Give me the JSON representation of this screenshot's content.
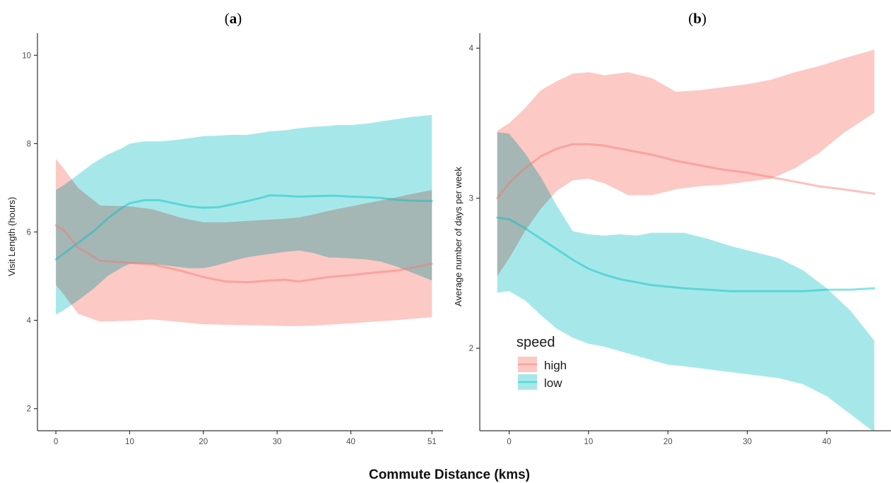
{
  "figure": {
    "xlabel": "Commute Distance (kms)"
  },
  "colors": {
    "high": "#F8766D",
    "low": "#00BFC4",
    "band_high": "#FCC9C5",
    "band_low": "#A6E8EA",
    "band_overlap": "#C4C4C4"
  },
  "chart_data": [
    {
      "type": "line",
      "panel_label": {
        "open": "(",
        "letter": "a",
        "close": ")"
      },
      "title": "",
      "xlabel": "",
      "ylabel": "Visit Length (hours)",
      "xlim": [
        -2.5,
        52.5
      ],
      "ylim": [
        1.5,
        10.5
      ],
      "xticks": [
        0,
        10,
        20,
        30,
        40,
        51
      ],
      "yticks": [
        2,
        4,
        6,
        8,
        10
      ],
      "grid": false,
      "series": [
        {
          "name": "high",
          "x": [
            0,
            1,
            3,
            6,
            10,
            13,
            17,
            20,
            23,
            26,
            29,
            31,
            33,
            35,
            37,
            40,
            43,
            46,
            48,
            51
          ],
          "y": [
            6.15,
            6.05,
            5.65,
            5.35,
            5.3,
            5.27,
            5.12,
            4.98,
            4.88,
            4.86,
            4.9,
            4.92,
            4.88,
            4.93,
            4.98,
            5.02,
            5.08,
            5.12,
            5.18,
            5.28
          ],
          "lower": [
            4.8,
            4.6,
            4.15,
            3.97,
            3.99,
            4.02,
            3.96,
            3.91,
            3.9,
            3.89,
            3.88,
            3.87,
            3.87,
            3.88,
            3.9,
            3.93,
            3.97,
            4.0,
            4.03,
            4.07
          ],
          "upper": [
            7.65,
            7.45,
            7.0,
            6.6,
            6.58,
            6.52,
            6.32,
            6.22,
            6.22,
            6.25,
            6.28,
            6.3,
            6.33,
            6.4,
            6.48,
            6.58,
            6.68,
            6.78,
            6.85,
            6.95
          ]
        },
        {
          "name": "low",
          "x": [
            0,
            1,
            3,
            5,
            7,
            9,
            10,
            12,
            14,
            16,
            18,
            20,
            22,
            24,
            26,
            28,
            29,
            31,
            33,
            35,
            37,
            38,
            40,
            42,
            44,
            46,
            48,
            51
          ],
          "y": [
            5.38,
            5.5,
            5.75,
            6.0,
            6.3,
            6.55,
            6.65,
            6.72,
            6.72,
            6.65,
            6.58,
            6.55,
            6.56,
            6.63,
            6.7,
            6.78,
            6.83,
            6.82,
            6.8,
            6.81,
            6.82,
            6.82,
            6.8,
            6.79,
            6.77,
            6.73,
            6.71,
            6.7
          ],
          "lower": [
            4.13,
            4.22,
            4.45,
            4.7,
            5.0,
            5.2,
            5.28,
            5.28,
            5.26,
            5.22,
            5.18,
            5.18,
            5.25,
            5.35,
            5.43,
            5.48,
            5.5,
            5.55,
            5.58,
            5.52,
            5.42,
            5.42,
            5.4,
            5.38,
            5.33,
            5.23,
            5.1,
            4.9
          ],
          "upper": [
            6.95,
            7.05,
            7.3,
            7.55,
            7.75,
            7.9,
            8.0,
            8.05,
            8.05,
            8.08,
            8.12,
            8.17,
            8.18,
            8.2,
            8.2,
            8.25,
            8.28,
            8.3,
            8.35,
            8.38,
            8.4,
            8.42,
            8.42,
            8.45,
            8.5,
            8.55,
            8.6,
            8.65
          ]
        }
      ]
    },
    {
      "type": "line",
      "panel_label": {
        "open": "(",
        "letter": "b",
        "close": ")"
      },
      "title": "",
      "xlabel": "",
      "ylabel": "Average number of days per week",
      "xlim": [
        -3.7,
        48.1
      ],
      "ylim": [
        1.45,
        4.1
      ],
      "xticks": [
        0,
        10,
        20,
        30,
        40
      ],
      "yticks": [
        2,
        3,
        4
      ],
      "grid": false,
      "legend": {
        "title": "speed",
        "placement": "bottom-left"
      },
      "series": [
        {
          "name": "high",
          "x": [
            -1.5,
            0,
            2,
            4,
            6,
            8,
            10,
            12,
            15,
            18,
            21,
            24,
            27,
            30,
            33,
            36,
            39,
            42,
            46
          ],
          "y": [
            3.0,
            3.1,
            3.2,
            3.28,
            3.33,
            3.36,
            3.36,
            3.35,
            3.32,
            3.29,
            3.25,
            3.22,
            3.19,
            3.17,
            3.14,
            3.11,
            3.08,
            3.06,
            3.03
          ],
          "lower": [
            2.48,
            2.6,
            2.78,
            2.93,
            3.05,
            3.12,
            3.13,
            3.1,
            3.02,
            3.02,
            3.06,
            3.08,
            3.09,
            3.11,
            3.13,
            3.2,
            3.3,
            3.43,
            3.57
          ],
          "upper": [
            3.45,
            3.5,
            3.6,
            3.72,
            3.78,
            3.83,
            3.84,
            3.82,
            3.84,
            3.8,
            3.71,
            3.72,
            3.74,
            3.76,
            3.79,
            3.84,
            3.88,
            3.93,
            3.99
          ]
        },
        {
          "name": "low",
          "x": [
            -1.5,
            0,
            2,
            4,
            6,
            8,
            10,
            12,
            14,
            16,
            18,
            20,
            22,
            25,
            28,
            31,
            34,
            37,
            40,
            43,
            46
          ],
          "y": [
            2.87,
            2.86,
            2.8,
            2.73,
            2.66,
            2.59,
            2.53,
            2.49,
            2.46,
            2.44,
            2.42,
            2.41,
            2.4,
            2.39,
            2.38,
            2.38,
            2.38,
            2.38,
            2.39,
            2.39,
            2.4
          ],
          "lower": [
            2.37,
            2.38,
            2.32,
            2.22,
            2.13,
            2.07,
            2.03,
            2.01,
            1.98,
            1.95,
            1.92,
            1.89,
            1.88,
            1.86,
            1.84,
            1.82,
            1.8,
            1.76,
            1.68,
            1.56,
            1.44
          ],
          "upper": [
            3.44,
            3.43,
            3.3,
            3.14,
            2.95,
            2.78,
            2.76,
            2.75,
            2.76,
            2.75,
            2.77,
            2.77,
            2.77,
            2.73,
            2.68,
            2.64,
            2.6,
            2.52,
            2.4,
            2.25,
            2.05
          ]
        }
      ]
    }
  ]
}
